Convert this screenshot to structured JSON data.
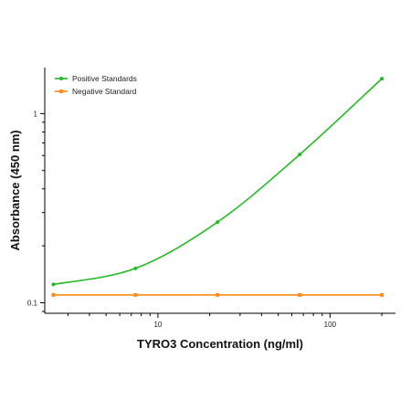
{
  "chart_data": {
    "type": "line",
    "title": "",
    "xlabel": "TYRO3 Concentration (ng/ml)",
    "ylabel": "Absorbance (450 nm)",
    "xscale": "log",
    "yscale": "log",
    "xlim": [
      2.2,
      240
    ],
    "ylim": [
      0.088,
      1.75
    ],
    "x_ticks": [
      {
        "value": 10,
        "label": "10"
      },
      {
        "value": 100,
        "label": "100"
      }
    ],
    "y_ticks": [
      {
        "value": 0.1,
        "label": "0.1"
      },
      {
        "value": 1,
        "label": "1"
      }
    ],
    "grid": false,
    "legend_position": "top-left",
    "series": [
      {
        "name": "Positive Standards",
        "color": "#22bb22",
        "x": [
          2.47,
          7.41,
          22.2,
          66.7,
          200
        ],
        "y": [
          0.125,
          0.152,
          0.267,
          0.608,
          1.53
        ],
        "curve": "fitted"
      },
      {
        "name": "Negative Standard",
        "color": "#ff8c1a",
        "x": [
          2.47,
          7.41,
          22.2,
          66.7,
          200
        ],
        "y": [
          0.11,
          0.11,
          0.11,
          0.11,
          0.11
        ],
        "curve": "straight"
      }
    ]
  }
}
